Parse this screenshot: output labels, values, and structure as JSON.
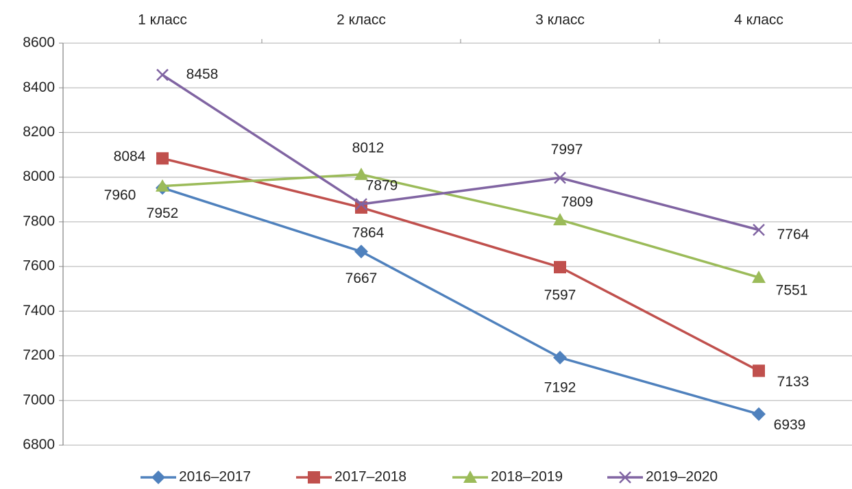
{
  "chart_data": {
    "type": "line",
    "categories": [
      "1 класс",
      "2 класс",
      "3 класс",
      "4 класс"
    ],
    "series": [
      {
        "name": "2016–2017",
        "color": "#4f81bd",
        "marker": "diamond",
        "values": [
          7952,
          7667,
          7192,
          6939
        ]
      },
      {
        "name": "2017–2018",
        "color": "#c0504d",
        "marker": "square",
        "values": [
          8084,
          7864,
          7597,
          7133
        ]
      },
      {
        "name": "2018–2019",
        "color": "#9bbb59",
        "marker": "triangle",
        "values": [
          7960,
          8012,
          7809,
          7551
        ]
      },
      {
        "name": "2019–2020",
        "color": "#8064a2",
        "marker": "x",
        "values": [
          8458,
          7879,
          7997,
          7764
        ]
      }
    ],
    "ylim": [
      6800,
      8600
    ],
    "yticks": [
      6800,
      7000,
      7200,
      7400,
      7600,
      7800,
      8000,
      8200,
      8400,
      8600
    ],
    "grid": true,
    "legend": "bottom"
  }
}
